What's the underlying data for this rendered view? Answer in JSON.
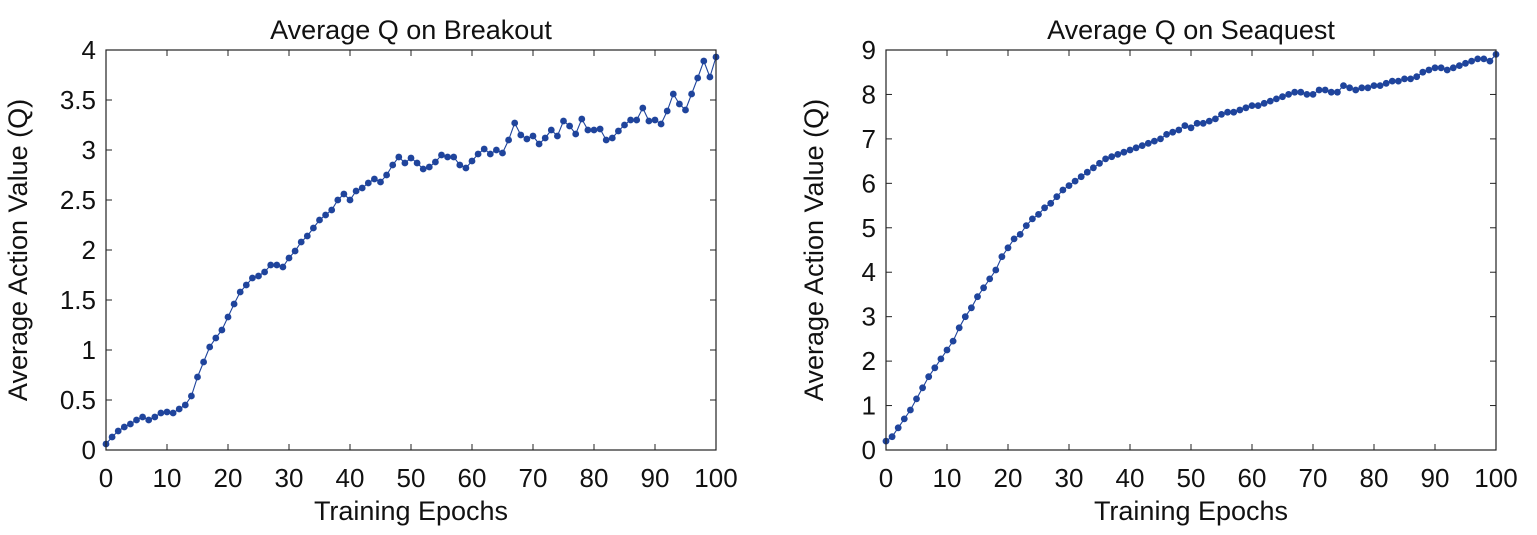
{
  "chart_data": [
    {
      "type": "line",
      "title": "Average Q on Breakout",
      "xlabel": "Training Epochs",
      "ylabel": "Average Action Value (Q)",
      "xlim": [
        0,
        100
      ],
      "ylim": [
        0,
        4
      ],
      "xticks": [
        0,
        10,
        20,
        30,
        40,
        50,
        60,
        70,
        80,
        90,
        100
      ],
      "xtick_labels": [
        "0",
        "10",
        "20",
        "30",
        "40",
        "50",
        "60",
        "70",
        "80",
        "90",
        "100"
      ],
      "yticks": [
        0,
        0.5,
        1,
        1.5,
        2,
        2.5,
        3,
        3.5,
        4
      ],
      "ytick_labels": [
        "0",
        "0.5",
        "1",
        "1.5",
        "2",
        "2.5",
        "3",
        "3.5",
        "4"
      ],
      "grid": false,
      "legend": "none",
      "series": [
        {
          "color": "#1f449c",
          "marker": "circle",
          "x": [
            0,
            1,
            2,
            3,
            4,
            5,
            6,
            7,
            8,
            9,
            10,
            11,
            12,
            13,
            14,
            15,
            16,
            17,
            18,
            19,
            20,
            21,
            22,
            23,
            24,
            25,
            26,
            27,
            28,
            29,
            30,
            31,
            32,
            33,
            34,
            35,
            36,
            37,
            38,
            39,
            40,
            41,
            42,
            43,
            44,
            45,
            46,
            47,
            48,
            49,
            50,
            51,
            52,
            53,
            54,
            55,
            56,
            57,
            58,
            59,
            60,
            61,
            62,
            63,
            64,
            65,
            66,
            67,
            68,
            69,
            70,
            71,
            72,
            73,
            74,
            75,
            76,
            77,
            78,
            79,
            80,
            81,
            82,
            83,
            84,
            85,
            86,
            87,
            88,
            89,
            90,
            91,
            92,
            93,
            94,
            95,
            96,
            97,
            98,
            99,
            100
          ],
          "y": [
            0.06,
            0.13,
            0.19,
            0.23,
            0.26,
            0.3,
            0.33,
            0.3,
            0.33,
            0.37,
            0.38,
            0.37,
            0.41,
            0.45,
            0.54,
            0.73,
            0.88,
            1.03,
            1.12,
            1.2,
            1.33,
            1.46,
            1.58,
            1.65,
            1.72,
            1.74,
            1.78,
            1.85,
            1.85,
            1.83,
            1.92,
            1.99,
            2.08,
            2.14,
            2.22,
            2.3,
            2.35,
            2.4,
            2.5,
            2.56,
            2.5,
            2.59,
            2.62,
            2.67,
            2.71,
            2.68,
            2.75,
            2.85,
            2.93,
            2.87,
            2.92,
            2.87,
            2.81,
            2.83,
            2.88,
            2.95,
            2.93,
            2.93,
            2.85,
            2.82,
            2.89,
            2.96,
            3.01,
            2.96,
            3.0,
            2.97,
            3.1,
            3.27,
            3.15,
            3.11,
            3.14,
            3.06,
            3.12,
            3.2,
            3.14,
            3.29,
            3.24,
            3.16,
            3.31,
            3.2,
            3.2,
            3.21,
            3.1,
            3.12,
            3.19,
            3.25,
            3.3,
            3.3,
            3.42,
            3.29,
            3.3,
            3.26,
            3.39,
            3.56,
            3.46,
            3.4,
            3.56,
            3.72,
            3.89,
            3.73,
            3.93
          ]
        }
      ]
    },
    {
      "type": "line",
      "title": "Average Q on Seaquest",
      "xlabel": "Training Epochs",
      "ylabel": "Average Action Value (Q)",
      "xlim": [
        0,
        100
      ],
      "ylim": [
        0,
        9
      ],
      "xticks": [
        0,
        10,
        20,
        30,
        40,
        50,
        60,
        70,
        80,
        90,
        100
      ],
      "xtick_labels": [
        "0",
        "10",
        "20",
        "30",
        "40",
        "50",
        "60",
        "70",
        "80",
        "90",
        "100"
      ],
      "yticks": [
        0,
        1,
        2,
        3,
        4,
        5,
        6,
        7,
        8,
        9
      ],
      "ytick_labels": [
        "0",
        "1",
        "2",
        "3",
        "4",
        "5",
        "6",
        "7",
        "8",
        "9"
      ],
      "grid": false,
      "legend": "none",
      "series": [
        {
          "color": "#1f449c",
          "marker": "circle",
          "x": [
            0,
            1,
            2,
            3,
            4,
            5,
            6,
            7,
            8,
            9,
            10,
            11,
            12,
            13,
            14,
            15,
            16,
            17,
            18,
            19,
            20,
            21,
            22,
            23,
            24,
            25,
            26,
            27,
            28,
            29,
            30,
            31,
            32,
            33,
            34,
            35,
            36,
            37,
            38,
            39,
            40,
            41,
            42,
            43,
            44,
            45,
            46,
            47,
            48,
            49,
            50,
            51,
            52,
            53,
            54,
            55,
            56,
            57,
            58,
            59,
            60,
            61,
            62,
            63,
            64,
            65,
            66,
            67,
            68,
            69,
            70,
            71,
            72,
            73,
            74,
            75,
            76,
            77,
            78,
            79,
            80,
            81,
            82,
            83,
            84,
            85,
            86,
            87,
            88,
            89,
            90,
            91,
            92,
            93,
            94,
            95,
            96,
            97,
            98,
            99,
            100
          ],
          "y": [
            0.2,
            0.3,
            0.5,
            0.7,
            0.9,
            1.15,
            1.4,
            1.65,
            1.85,
            2.05,
            2.25,
            2.45,
            2.75,
            3.0,
            3.2,
            3.45,
            3.65,
            3.85,
            4.05,
            4.35,
            4.55,
            4.75,
            4.85,
            5.05,
            5.2,
            5.3,
            5.45,
            5.55,
            5.7,
            5.85,
            5.95,
            6.05,
            6.15,
            6.25,
            6.35,
            6.45,
            6.55,
            6.6,
            6.65,
            6.7,
            6.75,
            6.8,
            6.85,
            6.9,
            6.95,
            7.0,
            7.1,
            7.15,
            7.2,
            7.3,
            7.25,
            7.35,
            7.35,
            7.4,
            7.45,
            7.55,
            7.6,
            7.6,
            7.65,
            7.7,
            7.75,
            7.75,
            7.8,
            7.85,
            7.9,
            7.95,
            8.0,
            8.05,
            8.05,
            8.0,
            8.0,
            8.1,
            8.1,
            8.05,
            8.05,
            8.2,
            8.15,
            8.1,
            8.15,
            8.15,
            8.2,
            8.2,
            8.25,
            8.3,
            8.3,
            8.35,
            8.35,
            8.4,
            8.5,
            8.55,
            8.6,
            8.6,
            8.55,
            8.6,
            8.65,
            8.7,
            8.75,
            8.8,
            8.8,
            8.75,
            8.9
          ]
        }
      ]
    }
  ]
}
